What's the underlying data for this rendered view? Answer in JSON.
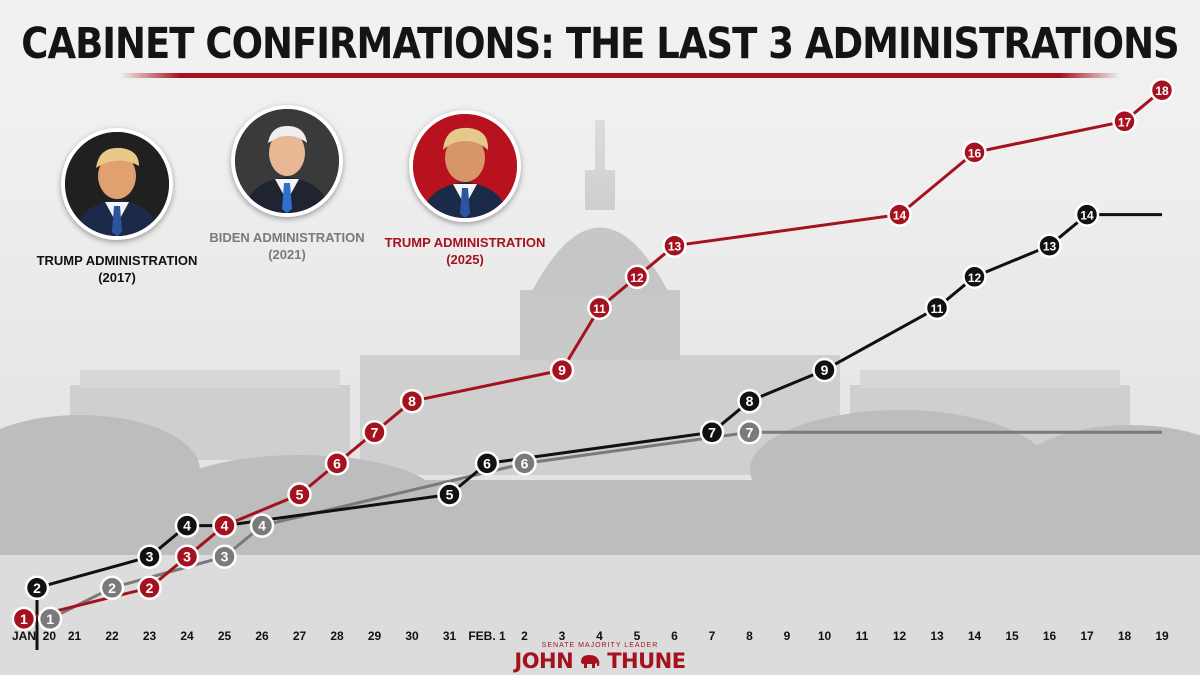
{
  "title": "CABINET CONFIRMATIONS: THE LAST 3 ADMINISTRATIONS",
  "footer": {
    "subtitle": "SENATE MAJORITY LEADER",
    "first": "JOHN",
    "last": "THUNE",
    "logo_icon": "elephant-icon"
  },
  "colors": {
    "trump2017": "#111111",
    "biden2021": "#7a7a7a",
    "trump2025": "#a5121f"
  },
  "chart_data": {
    "type": "line",
    "title": "CABINET CONFIRMATIONS: THE LAST 3 ADMINISTRATIONS",
    "xlabel": "",
    "ylabel": "",
    "ylim": [
      0,
      18
    ],
    "grid": false,
    "legend": "top-left (portraits)",
    "x_ticks": [
      "JAN. 20",
      "21",
      "22",
      "23",
      "24",
      "25",
      "26",
      "27",
      "28",
      "29",
      "30",
      "31",
      "FEB. 1",
      "2",
      "3",
      "4",
      "5",
      "6",
      "7",
      "8",
      "9",
      "10",
      "11",
      "12",
      "13",
      "14",
      "15",
      "16",
      "17",
      "18",
      "19"
    ],
    "series": [
      {
        "name": "TRUMP ADMINISTRATION",
        "year": "(2017)",
        "color": "#111111",
        "points": [
          [
            0,
            0
          ],
          [
            0,
            2
          ],
          [
            3,
            3
          ],
          [
            4,
            4
          ],
          [
            5,
            4
          ],
          [
            11,
            5
          ],
          [
            12,
            6
          ],
          [
            18,
            7
          ],
          [
            19,
            8
          ],
          [
            21,
            9
          ],
          [
            24,
            11
          ],
          [
            25,
            12
          ],
          [
            27,
            13
          ],
          [
            28,
            14
          ]
        ],
        "labeled": [
          false,
          true,
          true,
          true,
          false,
          true,
          true,
          true,
          true,
          true,
          true,
          true,
          true,
          true
        ],
        "extend_to": 30
      },
      {
        "name": "BIDEN ADMINISTRATION",
        "year": "(2021)",
        "color": "#7a7a7a",
        "points": [
          [
            0.35,
            1
          ],
          [
            2,
            2
          ],
          [
            5,
            3
          ],
          [
            6,
            4
          ],
          [
            13,
            6
          ],
          [
            19,
            7
          ]
        ],
        "labeled": [
          true,
          true,
          true,
          true,
          true,
          true
        ],
        "extend_to": 30
      },
      {
        "name": "TRUMP ADMINISTRATION",
        "year": "(2025)",
        "color": "#a5121f",
        "points": [
          [
            -0.35,
            1
          ],
          [
            3,
            2
          ],
          [
            4,
            3
          ],
          [
            5,
            4
          ],
          [
            7,
            5
          ],
          [
            8,
            6
          ],
          [
            9,
            7
          ],
          [
            10,
            8
          ],
          [
            14,
            9
          ],
          [
            15,
            11
          ],
          [
            16,
            12
          ],
          [
            17,
            13
          ],
          [
            23,
            14
          ],
          [
            25,
            16
          ],
          [
            29,
            17
          ],
          [
            30,
            18
          ]
        ],
        "labeled": [
          true,
          true,
          true,
          true,
          true,
          true,
          true,
          true,
          true,
          true,
          true,
          true,
          true,
          true,
          true,
          true
        ]
      }
    ]
  }
}
